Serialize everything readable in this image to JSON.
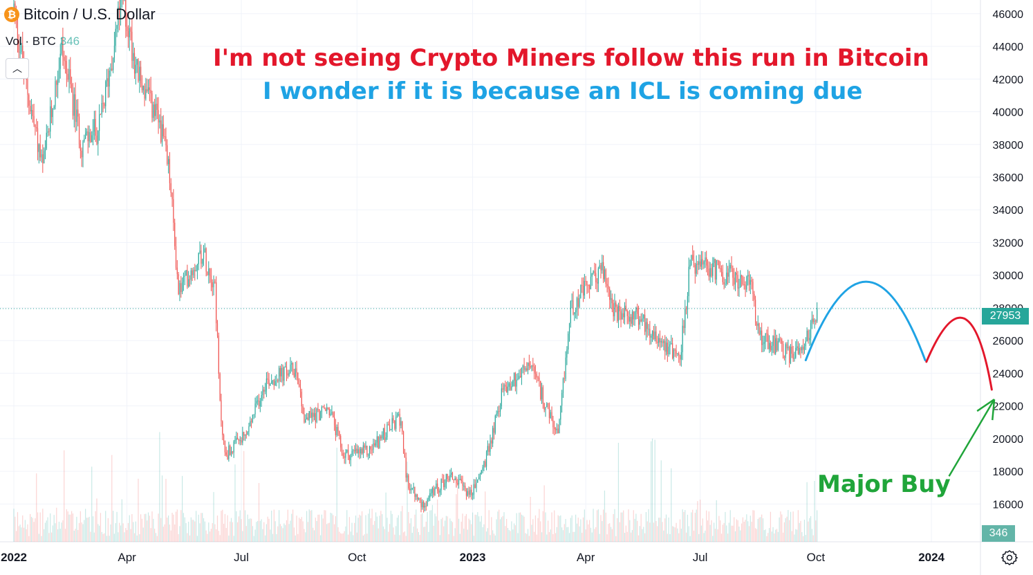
{
  "header": {
    "coin_icon": "bitcoin-icon",
    "coin_glyph": "₿",
    "title": "Bitcoin / U.S. Dollar",
    "vol_label": "Vol · BTC",
    "vol_value": "346"
  },
  "annotations": {
    "line1": "I'm not seeing Crypto Miners follow this run in Bitcoin",
    "line2": "I wonder if it is because an ICL is coming due",
    "major_buy": "Major Buy"
  },
  "price_axis": {
    "ticks": [
      "46000",
      "44000",
      "42000",
      "40000",
      "38000",
      "36000",
      "34000",
      "32000",
      "30000",
      "28000",
      "26000",
      "24000",
      "22000",
      "20000",
      "18000",
      "16000"
    ],
    "current_price": "27953",
    "volume_value": "346"
  },
  "time_axis": {
    "ticks": [
      "2022",
      "Apr",
      "Jul",
      "Oct",
      "2023",
      "Apr",
      "Jul",
      "Oct",
      "2024"
    ]
  },
  "colors": {
    "up": "#26a69a",
    "down": "#ef5350",
    "note_red": "#e3172b",
    "note_blue": "#1fa3e4",
    "note_green": "#20a53a",
    "grid": "#f0f3fa"
  },
  "chart_data": {
    "type": "candlestick",
    "title": "Bitcoin / U.S. Dollar",
    "ylim": [
      15000,
      46500
    ],
    "x_range": [
      "2022-01-01",
      "2024-02-20"
    ],
    "current_price": 27953,
    "close_series": [
      {
        "date": "2022-01-01",
        "close": 46300
      },
      {
        "date": "2022-01-10",
        "close": 42000
      },
      {
        "date": "2022-01-24",
        "close": 36500
      },
      {
        "date": "2022-02-08",
        "close": 44000
      },
      {
        "date": "2022-02-24",
        "close": 38000
      },
      {
        "date": "2022-03-10",
        "close": 39000
      },
      {
        "date": "2022-03-28",
        "close": 47000
      },
      {
        "date": "2022-04-10",
        "close": 42200
      },
      {
        "date": "2022-04-28",
        "close": 39000
      },
      {
        "date": "2022-05-05",
        "close": 36000
      },
      {
        "date": "2022-05-12",
        "close": 29000
      },
      {
        "date": "2022-05-31",
        "close": 31500
      },
      {
        "date": "2022-06-10",
        "close": 29500
      },
      {
        "date": "2022-06-14",
        "close": 22000
      },
      {
        "date": "2022-06-18",
        "close": 19000
      },
      {
        "date": "2022-07-05",
        "close": 20200
      },
      {
        "date": "2022-07-20",
        "close": 23500
      },
      {
        "date": "2022-08-14",
        "close": 24300
      },
      {
        "date": "2022-08-20",
        "close": 21200
      },
      {
        "date": "2022-09-09",
        "close": 21800
      },
      {
        "date": "2022-09-20",
        "close": 19000
      },
      {
        "date": "2022-10-10",
        "close": 19200
      },
      {
        "date": "2022-10-29",
        "close": 20800
      },
      {
        "date": "2022-11-05",
        "close": 21300
      },
      {
        "date": "2022-11-09",
        "close": 17500
      },
      {
        "date": "2022-11-21",
        "close": 15900
      },
      {
        "date": "2022-12-14",
        "close": 17800
      },
      {
        "date": "2022-12-31",
        "close": 16550
      },
      {
        "date": "2023-01-12",
        "close": 18800
      },
      {
        "date": "2023-01-25",
        "close": 23000
      },
      {
        "date": "2023-02-16",
        "close": 24500
      },
      {
        "date": "2023-03-10",
        "close": 20000
      },
      {
        "date": "2023-03-20",
        "close": 28000
      },
      {
        "date": "2023-04-14",
        "close": 30400
      },
      {
        "date": "2023-04-25",
        "close": 27500
      },
      {
        "date": "2023-05-10",
        "close": 27600
      },
      {
        "date": "2023-06-15",
        "close": 25000
      },
      {
        "date": "2023-06-23",
        "close": 30600
      },
      {
        "date": "2023-07-15",
        "close": 30300
      },
      {
        "date": "2023-08-10",
        "close": 29400
      },
      {
        "date": "2023-08-17",
        "close": 26400
      },
      {
        "date": "2023-09-11",
        "close": 25100
      },
      {
        "date": "2023-09-25",
        "close": 26300
      },
      {
        "date": "2023-10-02",
        "close": 27900
      }
    ],
    "volume": {
      "series_name": "Vol · BTC",
      "last": 346
    },
    "drawings": [
      {
        "color": "#1fa3e4",
        "points": [
          [
            "2023-09-23",
            24800
          ],
          [
            "2023-11-10",
            29600
          ],
          [
            "2023-12-27",
            24800
          ]
        ]
      },
      {
        "color": "#e3172b",
        "points": [
          [
            "2023-12-28",
            24700
          ],
          [
            "2024-01-27",
            27350
          ],
          [
            "2024-02-18",
            23000
          ]
        ]
      },
      {
        "color": "#20a53a",
        "arrow": true,
        "points": [
          [
            "2024-01-15",
            17700
          ],
          [
            "2024-02-20",
            22400
          ]
        ]
      }
    ]
  }
}
